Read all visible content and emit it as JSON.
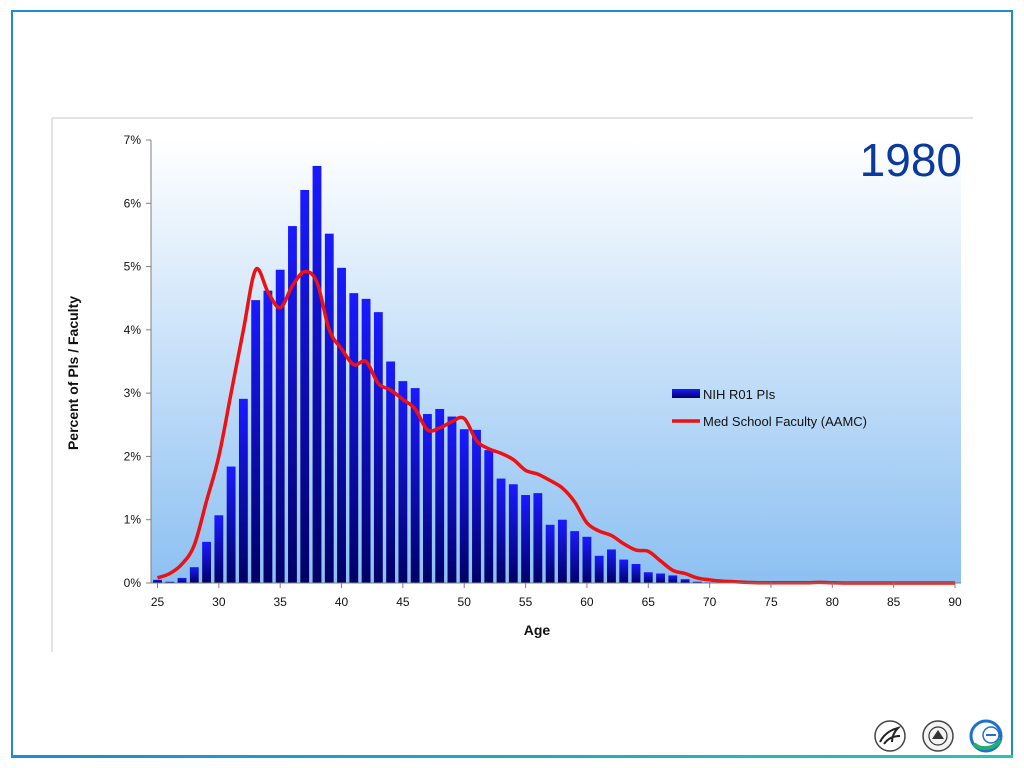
{
  "colors": {
    "slide_border": "#1f8bd1",
    "bar_top": "#1a1aff",
    "bar_bottom": "#000066",
    "line": "#ee1111",
    "year_text": "#0b3a9e",
    "plot_bg_top": "#ffffff",
    "plot_bg_bottom": "#8cc0f2"
  },
  "logos": [
    "hhs-eagle-icon",
    "nih-seal-icon",
    "oer-logo-icon"
  ],
  "chart_data": {
    "type": "bar",
    "annotation": "1980",
    "xlabel": "Age",
    "ylabel": "Percent of PIs / Faculty",
    "x_ticks": [
      "25",
      "30",
      "35",
      "40",
      "45",
      "50",
      "55",
      "60",
      "65",
      "70",
      "75",
      "80",
      "85",
      "90"
    ],
    "y_ticks": [
      "0%",
      "1%",
      "2%",
      "3%",
      "4%",
      "5%",
      "6%",
      "7%"
    ],
    "xlim": [
      25,
      90
    ],
    "ylim": [
      0,
      7
    ],
    "y_unit": "%",
    "grid": false,
    "legend_position": "center-right",
    "series": [
      {
        "name": "NIH R01 PIs",
        "type": "bar",
        "x": [
          25,
          26,
          27,
          28,
          29,
          30,
          31,
          32,
          33,
          34,
          35,
          36,
          37,
          38,
          39,
          40,
          41,
          42,
          43,
          44,
          45,
          46,
          47,
          48,
          49,
          50,
          51,
          52,
          53,
          54,
          55,
          56,
          57,
          58,
          59,
          60,
          61,
          62,
          63,
          64,
          65,
          66,
          67,
          68,
          69,
          70,
          71,
          72,
          73,
          74,
          75,
          76,
          77,
          78,
          79,
          80,
          81,
          82,
          83,
          84,
          85,
          86,
          87,
          88,
          89,
          90
        ],
        "values": [
          0.05,
          0.02,
          0.08,
          0.25,
          0.65,
          1.07,
          1.84,
          2.91,
          4.47,
          4.62,
          4.95,
          5.64,
          6.21,
          6.59,
          5.52,
          4.98,
          4.58,
          4.49,
          4.28,
          3.5,
          3.19,
          3.08,
          2.67,
          2.75,
          2.63,
          2.43,
          2.42,
          2.1,
          1.65,
          1.56,
          1.39,
          1.42,
          0.92,
          1.0,
          0.82,
          0.73,
          0.43,
          0.53,
          0.37,
          0.3,
          0.17,
          0.15,
          0.12,
          0.06,
          0.02,
          0.01,
          0,
          0,
          0,
          0,
          0,
          0,
          0,
          0,
          0,
          0,
          0,
          0,
          0,
          0,
          0,
          0,
          0,
          0,
          0,
          0
        ]
      },
      {
        "name": "Med School Faculty (AAMC)",
        "type": "line",
        "x": [
          25,
          26,
          27,
          28,
          29,
          30,
          31,
          32,
          33,
          34,
          35,
          36,
          37,
          38,
          39,
          40,
          41,
          42,
          43,
          44,
          45,
          46,
          47,
          48,
          49,
          50,
          51,
          52,
          53,
          54,
          55,
          56,
          57,
          58,
          59,
          60,
          61,
          62,
          63,
          64,
          65,
          66,
          67,
          68,
          69,
          70,
          71,
          72,
          73,
          74,
          75,
          76,
          77,
          78,
          79,
          80,
          81,
          82,
          83,
          84,
          85,
          86,
          87,
          88,
          89,
          90
        ],
        "values": [
          0.08,
          0.15,
          0.3,
          0.6,
          1.3,
          2.0,
          3.0,
          4.0,
          4.95,
          4.6,
          4.35,
          4.7,
          4.92,
          4.75,
          4.0,
          3.7,
          3.45,
          3.5,
          3.15,
          3.05,
          2.9,
          2.75,
          2.42,
          2.45,
          2.55,
          2.6,
          2.25,
          2.12,
          2.05,
          1.95,
          1.78,
          1.72,
          1.62,
          1.5,
          1.28,
          0.95,
          0.82,
          0.75,
          0.62,
          0.52,
          0.5,
          0.35,
          0.2,
          0.15,
          0.08,
          0.05,
          0.03,
          0.02,
          0.01,
          0.005,
          0.005,
          0.003,
          0.003,
          0.005,
          0.01,
          0.005,
          0,
          0,
          0,
          0,
          0,
          0,
          0,
          0,
          0,
          0
        ]
      }
    ]
  }
}
